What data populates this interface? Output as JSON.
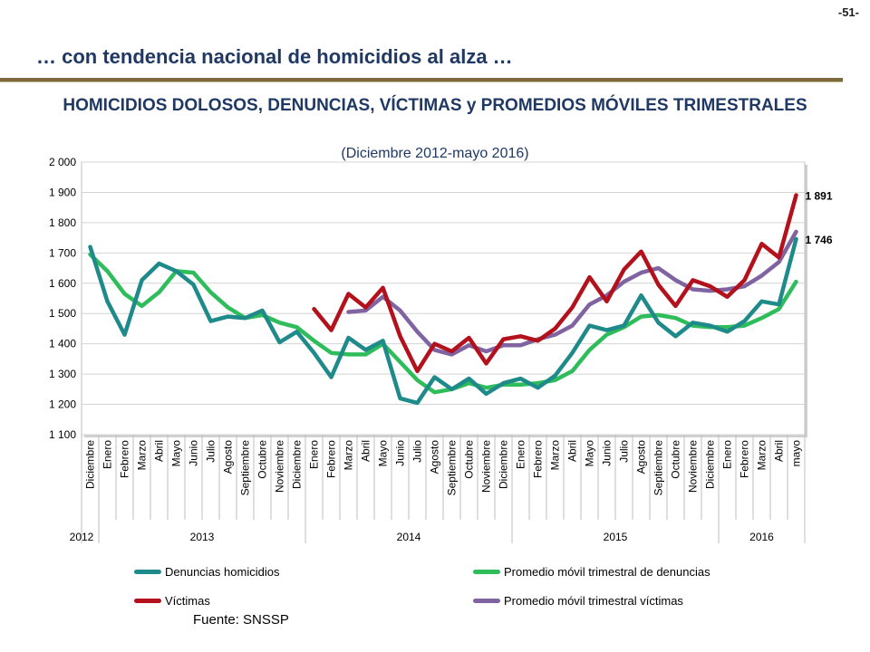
{
  "page_number": "-51-",
  "slide_title": "… con tendencia nacional de homicidios al alza …",
  "source": "Fuente: SNSSP",
  "colors": {
    "denuncias": "#1f8a8a",
    "prom_denuncias": "#2ebd5a",
    "victimas": "#b3111b",
    "prom_victimas": "#8064a2"
  },
  "chart_data": {
    "type": "line",
    "title": "HOMICIDIOS DOLOSOS, DENUNCIAS, VÍCTIMAS y PROMEDIOS MÓVILES TRIMESTRALES",
    "subtitle": "(Diciembre 2012-mayo 2016)",
    "ylim": [
      1100,
      2000
    ],
    "yticks": [
      "2 000",
      "1 900",
      "1 800",
      "1 700",
      "1 600",
      "1 500",
      "1 400",
      "1 300",
      "1 200",
      "1 100"
    ],
    "grid": true,
    "legend_position": "bottom",
    "categories": [
      "Diciembre",
      "Enero",
      "Febrero",
      "Marzo",
      "Abril",
      "Mayo",
      "Junio",
      "Julio",
      "Agosto",
      "Septiembre",
      "Octubre",
      "Noviembre",
      "Diciembre",
      "Enero",
      "Febrero",
      "Marzo",
      "Abril",
      "Mayo",
      "Junio",
      "Julio",
      "Agosto",
      "Septiembre",
      "Octubre",
      "Noviembre",
      "Diciembre",
      "Enero",
      "Febrero",
      "Marzo",
      "Abril",
      "Mayo",
      "Junio",
      "Julio",
      "Agosto",
      "Septiembre",
      "Octubre",
      "Noviembre",
      "Diciembre",
      "Enero",
      "Febrero",
      "Marzo",
      "Abril",
      "mayo"
    ],
    "years": [
      {
        "label": "2012",
        "start": 0,
        "end": 0
      },
      {
        "label": "2013",
        "start": 1,
        "end": 12
      },
      {
        "label": "2014",
        "start": 13,
        "end": 24
      },
      {
        "label": "2015",
        "start": 25,
        "end": 36
      },
      {
        "label": "2016",
        "start": 37,
        "end": 41
      }
    ],
    "series": [
      {
        "name": "Denuncias homicidios",
        "color_key": "denuncias",
        "values": [
          1720,
          1540,
          1430,
          1610,
          1665,
          1640,
          1595,
          1475,
          1490,
          1485,
          1510,
          1405,
          1440,
          1370,
          1290,
          1420,
          1380,
          1410,
          1220,
          1205,
          1290,
          1250,
          1285,
          1235,
          1270,
          1285,
          1255,
          1295,
          1370,
          1460,
          1445,
          1460,
          1560,
          1470,
          1425,
          1470,
          1460,
          1440,
          1475,
          1540,
          1530,
          1746
        ]
      },
      {
        "name": "Promedio móvil trimestral de denuncias",
        "color_key": "prom_denuncias",
        "values": [
          1695,
          1640,
          1565,
          1525,
          1570,
          1640,
          1635,
          1570,
          1520,
          1485,
          1495,
          1470,
          1455,
          1410,
          1370,
          1365,
          1365,
          1400,
          1340,
          1280,
          1240,
          1250,
          1270,
          1255,
          1265,
          1265,
          1270,
          1280,
          1310,
          1380,
          1430,
          1455,
          1490,
          1495,
          1485,
          1460,
          1455,
          1455,
          1460,
          1485,
          1515,
          1605
        ]
      },
      {
        "name": "Víctimas",
        "color_key": "victimas",
        "values": [
          null,
          null,
          null,
          null,
          null,
          null,
          null,
          null,
          null,
          null,
          null,
          null,
          null,
          1515,
          1445,
          1565,
          1520,
          1585,
          1425,
          1310,
          1400,
          1375,
          1420,
          1335,
          1415,
          1425,
          1410,
          1450,
          1520,
          1620,
          1540,
          1645,
          1705,
          1595,
          1525,
          1610,
          1590,
          1555,
          1610,
          1730,
          1685,
          1891
        ]
      },
      {
        "name": "Promedio móvil trimestral víctimas",
        "color_key": "prom_victimas",
        "values": [
          null,
          null,
          null,
          null,
          null,
          null,
          null,
          null,
          null,
          null,
          null,
          null,
          null,
          null,
          null,
          1505,
          1510,
          1555,
          1510,
          1440,
          1380,
          1365,
          1395,
          1375,
          1395,
          1395,
          1415,
          1430,
          1460,
          1530,
          1560,
          1605,
          1635,
          1650,
          1610,
          1580,
          1575,
          1580,
          1590,
          1625,
          1670,
          1770
        ]
      }
    ],
    "end_labels": [
      {
        "text": "1 891",
        "series_index": 2
      },
      {
        "text": "1 746",
        "series_index": 0
      }
    ]
  }
}
